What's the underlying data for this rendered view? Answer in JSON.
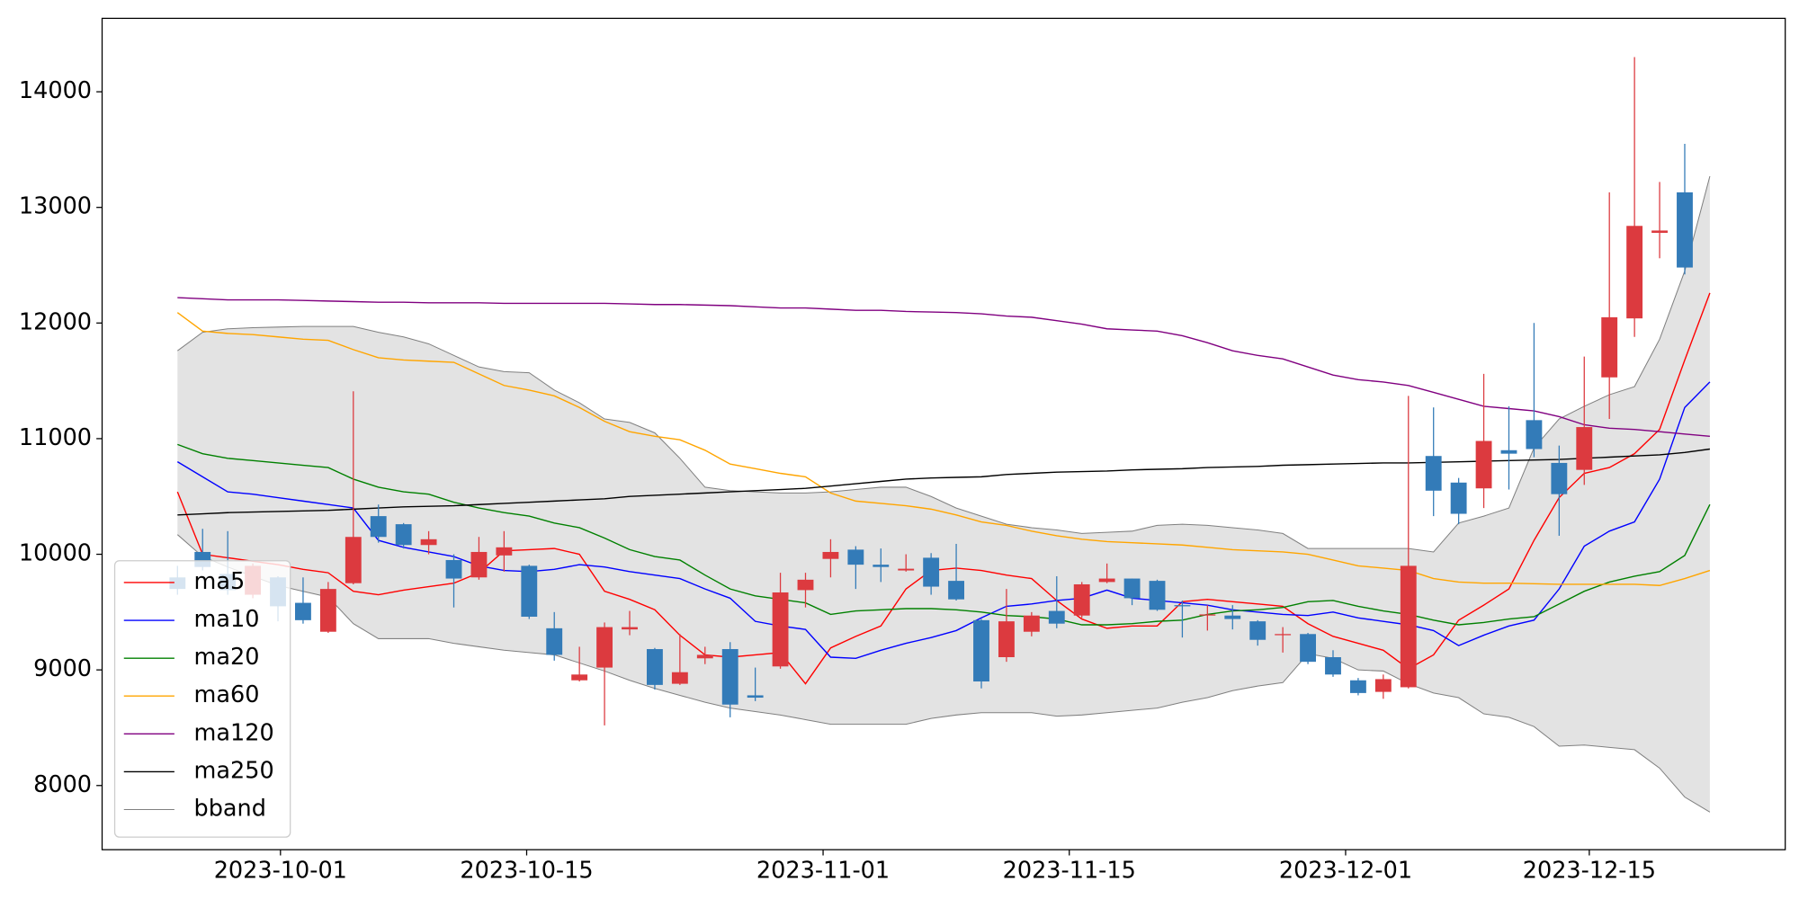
{
  "chart_data": {
    "type": "candlestick",
    "x": [
      0,
      1,
      2,
      3,
      4,
      5,
      6,
      7,
      8,
      9,
      10,
      11,
      12,
      13,
      14,
      15,
      16,
      17,
      18,
      19,
      20,
      21,
      22,
      23,
      24,
      25,
      26,
      27,
      28,
      29,
      30,
      31,
      32,
      33,
      34,
      35,
      36,
      37,
      38,
      39,
      40,
      41,
      42,
      43,
      44,
      45,
      46,
      47,
      48,
      49,
      50,
      51,
      52,
      53,
      54,
      55,
      56,
      57,
      58,
      59,
      60,
      61
    ],
    "open": [
      9800,
      10020,
      9830,
      9650,
      9800,
      9580,
      9330,
      9750,
      10330,
      10260,
      10080,
      9950,
      9800,
      9990,
      9900,
      9360,
      8910,
      9020,
      9350,
      9180,
      8880,
      9100,
      9180,
      8780,
      9030,
      9690,
      9960,
      10040,
      9910,
      9860,
      9970,
      9770,
      9430,
      9110,
      9330,
      9510,
      9470,
      9760,
      9790,
      9770,
      9560,
      9470,
      9470,
      9420,
      9300,
      9310,
      9110,
      8910,
      8810,
      8850,
      10850,
      10620,
      10570,
      10900,
      11160,
      10790,
      10730,
      11530,
      12040,
      12780,
      13130,
      null
    ],
    "high": [
      9900,
      10220,
      10200,
      9920,
      9810,
      9800,
      9760,
      11410,
      10430,
      10270,
      10200,
      10000,
      10150,
      10200,
      9910,
      9500,
      9200,
      9410,
      9510,
      9190,
      9310,
      9200,
      9240,
      9020,
      9840,
      9840,
      10130,
      10070,
      10050,
      10000,
      10010,
      10090,
      9440,
      9700,
      9500,
      9810,
      9760,
      9920,
      9790,
      9780,
      9600,
      9560,
      9560,
      9430,
      9370,
      9320,
      9170,
      8930,
      8960,
      11370,
      11270,
      10660,
      11560,
      11280,
      12000,
      10940,
      11710,
      13130,
      14300,
      13220,
      13550,
      null
    ],
    "low": [
      9650,
      9860,
      9650,
      9620,
      9420,
      9400,
      9320,
      9740,
      10100,
      10050,
      10000,
      9540,
      9780,
      9850,
      9440,
      9080,
      8900,
      8520,
      9300,
      8830,
      8870,
      9050,
      8590,
      8730,
      9010,
      9540,
      9800,
      9700,
      9760,
      9850,
      9650,
      9600,
      8840,
      9070,
      9290,
      9360,
      9450,
      9750,
      9560,
      9510,
      9280,
      9340,
      9350,
      9210,
      9150,
      9050,
      8940,
      8780,
      8750,
      8840,
      10330,
      10260,
      10400,
      10560,
      10840,
      10160,
      10600,
      11170,
      11880,
      12560,
      12420,
      null
    ],
    "close": [
      9700,
      9890,
      9690,
      9900,
      9550,
      9430,
      9700,
      10150,
      10150,
      10080,
      10130,
      9790,
      10020,
      10060,
      9460,
      9130,
      8960,
      9370,
      9370,
      8870,
      8980,
      9130,
      8700,
      8760,
      9670,
      9780,
      10020,
      9910,
      9890,
      9875,
      9720,
      9610,
      8900,
      9420,
      9470,
      9400,
      9740,
      9790,
      9620,
      9520,
      9550,
      9480,
      9440,
      9260,
      9310,
      9070,
      8960,
      8800,
      8920,
      9900,
      10550,
      10350,
      10980,
      10870,
      10910,
      10520,
      11100,
      12050,
      12840,
      12800,
      12480,
      null
    ],
    "up_color": "#dc3a3f",
    "down_color": "#337bb8",
    "series": [
      {
        "name": "ma5",
        "color": "#ff0000",
        "values": [
          10540,
          10000,
          9970,
          9940,
          9910,
          9870,
          9840,
          9680,
          9650,
          9690,
          9720,
          9750,
          9840,
          10030,
          10040,
          10050,
          10000,
          9680,
          9610,
          9520,
          9300,
          9130,
          9110,
          9130,
          9150,
          8880,
          9190,
          9290,
          9380,
          9700,
          9860,
          9880,
          9860,
          9820,
          9790,
          9600,
          9440,
          9360,
          9380,
          9380,
          9590,
          9610,
          9590,
          9570,
          9550,
          9400,
          9290,
          9230,
          9170,
          9010,
          9130,
          9430,
          9560,
          9700,
          10120,
          10490,
          10700,
          10750,
          10870,
          11080,
          11680,
          12260
        ]
      },
      {
        "name": "ma10",
        "color": "#0000ff",
        "values": [
          10800,
          10670,
          10540,
          10520,
          10490,
          10460,
          10430,
          10400,
          10120,
          10060,
          10020,
          9980,
          9900,
          9860,
          9850,
          9870,
          9910,
          9890,
          9850,
          9820,
          9790,
          9700,
          9620,
          9420,
          9380,
          9350,
          9110,
          9100,
          9170,
          9230,
          9280,
          9340,
          9450,
          9550,
          9570,
          9600,
          9620,
          9690,
          9620,
          9600,
          9580,
          9560,
          9520,
          9500,
          9480,
          9470,
          9500,
          9450,
          9420,
          9390,
          9340,
          9210,
          9300,
          9380,
          9430,
          9700,
          10070,
          10200,
          10280,
          10650,
          11270,
          11490
        ]
      },
      {
        "name": "ma20",
        "color": "#008000",
        "values": [
          10950,
          10870,
          10830,
          10810,
          10790,
          10770,
          10750,
          10650,
          10580,
          10540,
          10520,
          10450,
          10400,
          10360,
          10330,
          10270,
          10230,
          10140,
          10040,
          9980,
          9950,
          9820,
          9700,
          9640,
          9610,
          9580,
          9480,
          9510,
          9520,
          9530,
          9530,
          9520,
          9500,
          9470,
          9460,
          9440,
          9390,
          9390,
          9400,
          9420,
          9430,
          9480,
          9510,
          9520,
          9540,
          9590,
          9600,
          9550,
          9510,
          9480,
          9430,
          9390,
          9410,
          9440,
          9460,
          9570,
          9680,
          9760,
          9810,
          9850,
          9990,
          10430
        ]
      },
      {
        "name": "ma60",
        "color": "#ffa500",
        "values": [
          12090,
          11930,
          11910,
          11900,
          11880,
          11860,
          11850,
          11770,
          11700,
          11680,
          11670,
          11660,
          11560,
          11460,
          11420,
          11370,
          11270,
          11150,
          11060,
          11020,
          10990,
          10900,
          10780,
          10740,
          10700,
          10670,
          10530,
          10460,
          10440,
          10420,
          10390,
          10340,
          10280,
          10250,
          10200,
          10160,
          10130,
          10110,
          10100,
          10090,
          10080,
          10060,
          10040,
          10030,
          10020,
          10000,
          9950,
          9900,
          9880,
          9860,
          9790,
          9760,
          9750,
          9750,
          9745,
          9740,
          9740,
          9740,
          9740,
          9730,
          9790,
          9860
        ]
      },
      {
        "name": "ma120",
        "color": "#800080",
        "values": [
          12220,
          12210,
          12200,
          12200,
          12200,
          12195,
          12190,
          12185,
          12180,
          12180,
          12175,
          12175,
          12175,
          12170,
          12170,
          12170,
          12170,
          12170,
          12165,
          12160,
          12160,
          12155,
          12150,
          12140,
          12130,
          12130,
          12120,
          12110,
          12110,
          12100,
          12095,
          12090,
          12080,
          12060,
          12050,
          12020,
          11990,
          11950,
          11940,
          11930,
          11890,
          11830,
          11760,
          11720,
          11690,
          11620,
          11550,
          11510,
          11490,
          11460,
          11400,
          11340,
          11280,
          11260,
          11240,
          11190,
          11120,
          11090,
          11080,
          11060,
          11040,
          11020
        ]
      },
      {
        "name": "ma250",
        "color": "#000000",
        "values": [
          10340,
          10350,
          10360,
          10365,
          10370,
          10375,
          10380,
          10390,
          10400,
          10410,
          10415,
          10420,
          10430,
          10440,
          10450,
          10460,
          10470,
          10480,
          10500,
          10510,
          10520,
          10530,
          10540,
          10550,
          10560,
          10570,
          10590,
          10610,
          10630,
          10650,
          10660,
          10665,
          10670,
          10690,
          10700,
          10710,
          10715,
          10720,
          10730,
          10735,
          10740,
          10750,
          10755,
          10760,
          10770,
          10775,
          10780,
          10785,
          10790,
          10790,
          10795,
          10800,
          10805,
          10810,
          10815,
          10820,
          10830,
          10840,
          10850,
          10860,
          10880,
          10910
        ]
      }
    ],
    "bband": {
      "name": "bband",
      "color": "#808080",
      "fill": "#e3e3e3",
      "upper": [
        11760,
        11920,
        11950,
        11960,
        11965,
        11970,
        11970,
        11970,
        11920,
        11880,
        11820,
        11720,
        11620,
        11580,
        11570,
        11420,
        11310,
        11170,
        11140,
        11050,
        10830,
        10580,
        10550,
        10540,
        10530,
        10530,
        10540,
        10560,
        10580,
        10580,
        10500,
        10400,
        10330,
        10260,
        10230,
        10210,
        10180,
        10190,
        10200,
        10250,
        10260,
        10250,
        10230,
        10210,
        10180,
        10050,
        10050,
        10050,
        10050,
        10050,
        10020,
        10270,
        10330,
        10400,
        10920,
        11170,
        11280,
        11380,
        11450,
        11860,
        12450,
        13270
      ],
      "lower": [
        10170,
        9980,
        9890,
        9810,
        9730,
        9680,
        9630,
        9400,
        9270,
        9270,
        9270,
        9230,
        9200,
        9170,
        9150,
        9130,
        9060,
        8990,
        8910,
        8840,
        8780,
        8720,
        8670,
        8640,
        8610,
        8570,
        8530,
        8530,
        8530,
        8530,
        8580,
        8610,
        8630,
        8630,
        8630,
        8600,
        8610,
        8630,
        8650,
        8670,
        8720,
        8760,
        8820,
        8860,
        8890,
        9140,
        9100,
        9000,
        8990,
        8880,
        8800,
        8760,
        8620,
        8590,
        8510,
        8340,
        8350,
        8330,
        8310,
        8150,
        7900,
        7770
      ]
    },
    "xlim": [
      -3,
      64
    ],
    "ylim": [
      7445,
      14635
    ],
    "xticks": [
      {
        "value": 4.1,
        "label": "2023-10-01"
      },
      {
        "value": 13.9,
        "label": "2023-10-15"
      },
      {
        "value": 25.7,
        "label": "2023-11-01"
      },
      {
        "value": 35.5,
        "label": "2023-11-15"
      },
      {
        "value": 46.5,
        "label": "2023-12-01"
      },
      {
        "value": 56.2,
        "label": "2023-12-15"
      }
    ],
    "yticks": [
      8000,
      9000,
      10000,
      11000,
      12000,
      13000,
      14000
    ],
    "legend": "lower left"
  }
}
